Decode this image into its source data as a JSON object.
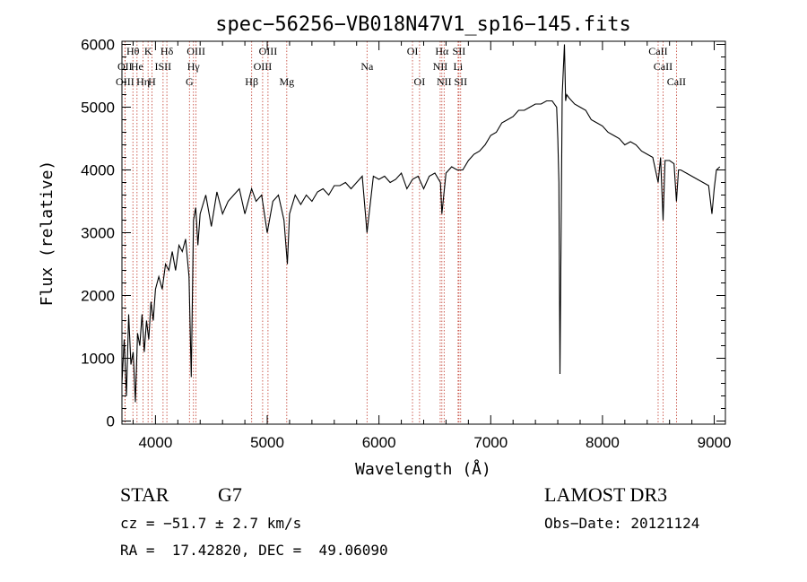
{
  "chart_data": {
    "type": "line",
    "title": "spec−56256−VB018N47V1_sp16−145.fits",
    "xlabel": "Wavelength (Å)",
    "ylabel": "Flux (relative)",
    "xlim": [
      3700,
      9100
    ],
    "ylim": [
      -50,
      6050
    ],
    "x_ticks": [
      4000,
      5000,
      6000,
      7000,
      8000,
      9000
    ],
    "y_ticks": [
      0,
      1000,
      2000,
      3000,
      4000,
      5000,
      6000
    ],
    "series": [
      {
        "name": "flux",
        "x": [
          3700,
          3720,
          3740,
          3760,
          3780,
          3800,
          3820,
          3840,
          3860,
          3880,
          3900,
          3920,
          3940,
          3960,
          3980,
          4000,
          4030,
          4060,
          4090,
          4120,
          4150,
          4180,
          4210,
          4240,
          4270,
          4300,
          4320,
          4340,
          4360,
          4380,
          4400,
          4450,
          4500,
          4550,
          4600,
          4650,
          4700,
          4750,
          4800,
          4860,
          4900,
          4950,
          5000,
          5050,
          5100,
          5150,
          5180,
          5200,
          5250,
          5300,
          5350,
          5400,
          5450,
          5500,
          5550,
          5600,
          5650,
          5700,
          5750,
          5800,
          5850,
          5893,
          5950,
          6000,
          6050,
          6100,
          6150,
          6200,
          6250,
          6300,
          6350,
          6400,
          6450,
          6500,
          6550,
          6563,
          6600,
          6650,
          6700,
          6750,
          6800,
          6850,
          6900,
          6950,
          7000,
          7050,
          7100,
          7150,
          7200,
          7250,
          7300,
          7350,
          7400,
          7450,
          7500,
          7550,
          7590,
          7600,
          7610,
          7620,
          7640,
          7660,
          7670,
          7680,
          7700,
          7750,
          7800,
          7850,
          7900,
          7950,
          8000,
          8050,
          8100,
          8150,
          8200,
          8250,
          8300,
          8350,
          8400,
          8450,
          8498,
          8520,
          8542,
          8560,
          8600,
          8640,
          8662,
          8680,
          8700,
          8750,
          8800,
          8850,
          8900,
          8950,
          8980,
          9000,
          9020,
          9050
        ],
        "values": [
          600,
          1300,
          400,
          1700,
          900,
          1100,
          300,
          1400,
          1200,
          1700,
          1100,
          1600,
          1300,
          1900,
          1600,
          2100,
          2300,
          2100,
          2500,
          2400,
          2700,
          2400,
          2800,
          2700,
          2900,
          2300,
          700,
          3200,
          3400,
          2800,
          3300,
          3600,
          3100,
          3650,
          3300,
          3500,
          3600,
          3700,
          3300,
          3700,
          3500,
          3600,
          3000,
          3500,
          3600,
          3200,
          2500,
          3300,
          3600,
          3450,
          3600,
          3500,
          3650,
          3700,
          3600,
          3750,
          3750,
          3800,
          3700,
          3800,
          3900,
          3000,
          3900,
          3850,
          3900,
          3800,
          3850,
          3950,
          3700,
          3850,
          3900,
          3700,
          3900,
          3950,
          3800,
          3300,
          3950,
          4050,
          4000,
          4000,
          4150,
          4250,
          4300,
          4400,
          4550,
          4600,
          4750,
          4800,
          4850,
          4950,
          4950,
          5000,
          5050,
          5050,
          5100,
          5100,
          5000,
          4500,
          3800,
          750,
          5200,
          6000,
          5100,
          5200,
          5150,
          5050,
          5000,
          4950,
          4800,
          4750,
          4700,
          4600,
          4550,
          4500,
          4400,
          4450,
          4400,
          4300,
          4250,
          4200,
          3800,
          4200,
          3200,
          4150,
          4150,
          4100,
          3500,
          4000,
          4000,
          3950,
          3900,
          3850,
          3800,
          3750,
          3300,
          3700,
          4000,
          4050
        ]
      }
    ],
    "lines": [
      {
        "label": "Hθ",
        "x": 3798,
        "row": 0
      },
      {
        "label": "OII",
        "x": 3727,
        "row": 1
      },
      {
        "label": "OIII",
        "x": 3727,
        "row": 2
      },
      {
        "label": "He",
        "x": 3835,
        "row": 1
      },
      {
        "label": "Hη",
        "x": 3889,
        "row": 2
      },
      {
        "label": "K",
        "x": 3934,
        "row": 0
      },
      {
        "label": "H",
        "x": 3968,
        "row": 2
      },
      {
        "label": "ISII",
        "x": 4068,
        "row": 1
      },
      {
        "label": "Hδ",
        "x": 4102,
        "row": 0
      },
      {
        "label": "OIII",
        "x": 4363,
        "row": 0
      },
      {
        "label": "Hγ",
        "x": 4340,
        "row": 1
      },
      {
        "label": "G",
        "x": 4304,
        "row": 2
      },
      {
        "label": "Hβ",
        "x": 4861,
        "row": 2
      },
      {
        "label": "OIII",
        "x": 4959,
        "row": 1
      },
      {
        "label": "OIII",
        "x": 5007,
        "row": 0
      },
      {
        "label": "Mg",
        "x": 5175,
        "row": 2
      },
      {
        "label": "Na",
        "x": 5893,
        "row": 1
      },
      {
        "label": "OI",
        "x": 6300,
        "row": 0
      },
      {
        "label": "OI",
        "x": 6363,
        "row": 2
      },
      {
        "label": "Hα",
        "x": 6563,
        "row": 0
      },
      {
        "label": "NII",
        "x": 6548,
        "row": 1
      },
      {
        "label": "NII",
        "x": 6583,
        "row": 2
      },
      {
        "label": "SII",
        "x": 6716,
        "row": 0
      },
      {
        "label": "Li",
        "x": 6708,
        "row": 1
      },
      {
        "label": "SII",
        "x": 6731,
        "row": 2
      },
      {
        "label": "CaII",
        "x": 8498,
        "row": 0
      },
      {
        "label": "CaII",
        "x": 8542,
        "row": 1
      },
      {
        "label": "CaII",
        "x": 8662,
        "row": 2
      }
    ]
  },
  "info": {
    "object_class": "STAR",
    "subclass": "G7",
    "survey": "LAMOST DR3",
    "cz": "cz = −51.7 ± 2.7 km/s",
    "obs_date": "Obs−Date: 20121124",
    "coords": "RA =  17.42820, DEC =  49.06090"
  },
  "colors": {
    "spectrum": "#000000",
    "marker_line": "#c0392b",
    "axis": "#000000"
  }
}
